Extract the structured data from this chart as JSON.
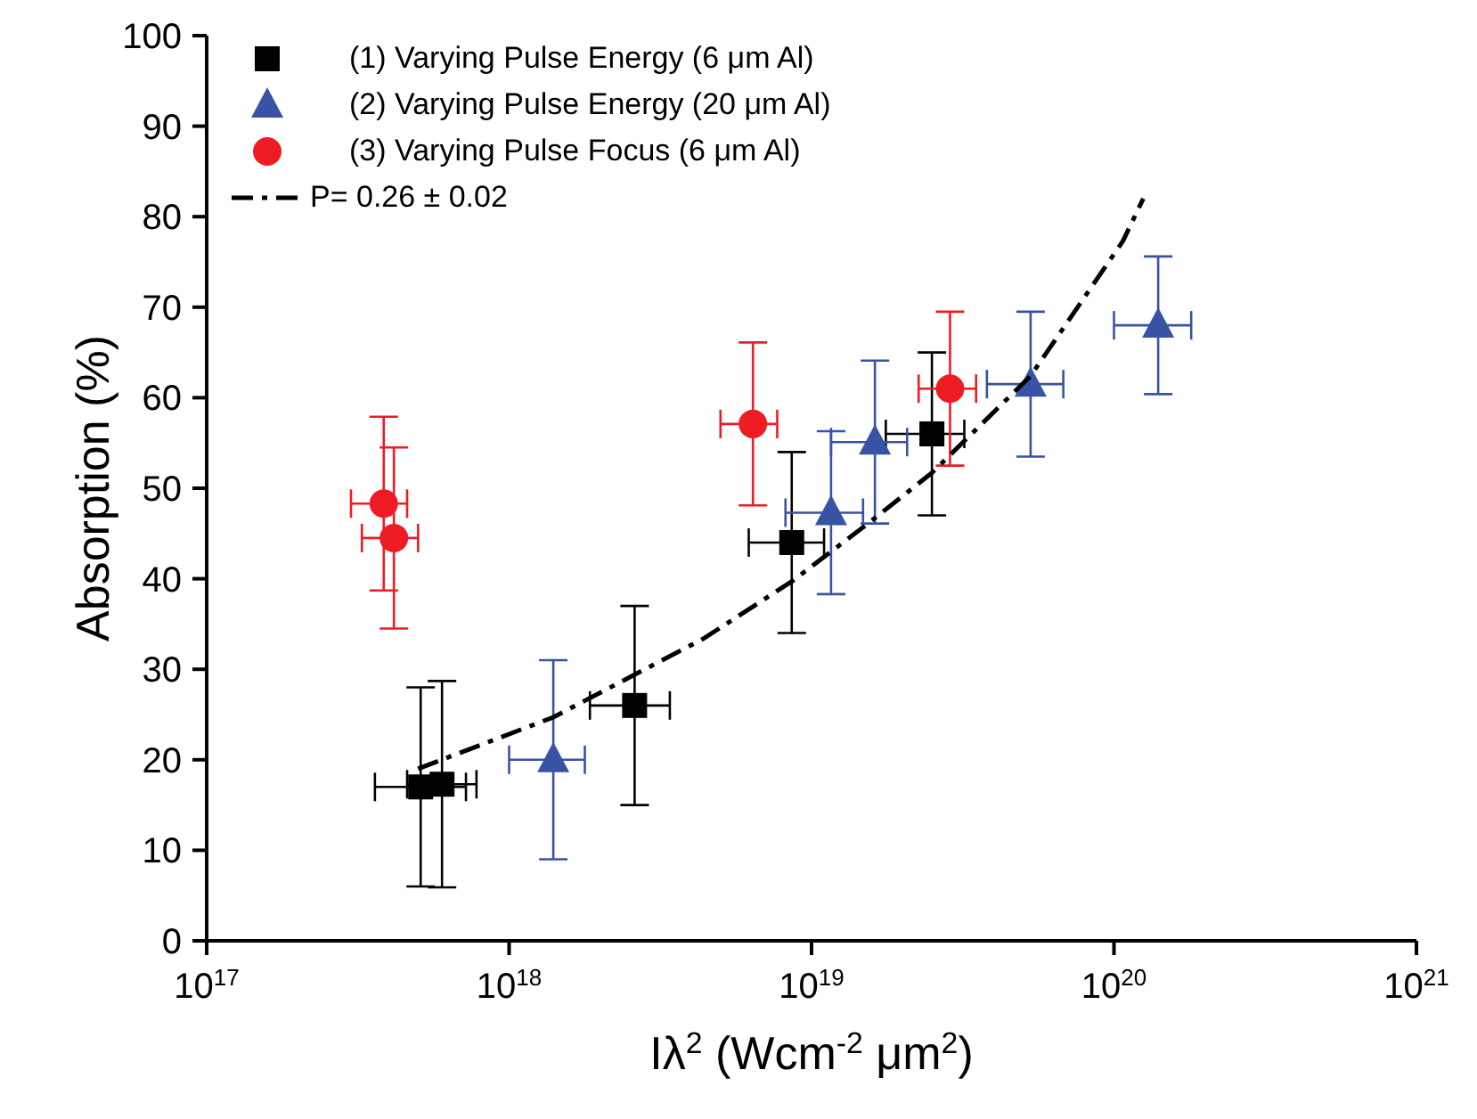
{
  "chart_data": {
    "type": "scatter",
    "xlabel": "Iλ$^{2}$ (Wcm$^{-2}$ μm$^{2}$)",
    "ylabel": "Absorption (%)",
    "log": "x",
    "xlim": [
      1e+17,
      1e+21
    ],
    "xticks": [
      {
        "value": 1e+17,
        "label": "10$^{17}$"
      },
      {
        "value": 1e+18,
        "label": "10$^{18}$"
      },
      {
        "value": 1e+19,
        "label": "10$^{19}$"
      },
      {
        "value": 1e+20,
        "label": "10$^{20}$"
      },
      {
        "value": 1e+21,
        "label": "10$^{21}$"
      }
    ],
    "ylim": [
      0,
      100
    ],
    "yticks": [
      0,
      10,
      20,
      30,
      40,
      50,
      60,
      70,
      80,
      90,
      100
    ],
    "grid": false,
    "legend": "top left",
    "series": [
      {
        "name": "(1) Varying Pulse Energy (6 μm Al)",
        "color": "#000000",
        "marker": "square",
        "x": [
          5.1e+17,
          6e+17,
          2.6e+18,
          8.6e+18,
          2.5e+19
        ],
        "values": [
          17,
          17.3,
          26,
          44,
          56
        ],
        "errors": [
          11,
          11.4,
          11,
          10,
          9
        ],
        "xerrors": [
          [
            3.6e+17,
            7.2e+17
          ],
          [
            4.6e+17,
            7.8e+17
          ],
          [
            1.85e+18,
            3.4e+18
          ],
          [
            6.2e+18,
            1.1e+19
          ],
          [
            1.76e+19,
            3.2e+19
          ]
        ]
      },
      {
        "name": "(2) Varying Pulse Energy (20 μm Al)",
        "color": "#3953a4",
        "marker": "triangle",
        "x": [
          1.4e+18,
          1.16e+19,
          1.62e+19,
          5.3e+19,
          1.4e+20
        ],
        "values": [
          20,
          47.3,
          55.1,
          61.5,
          68
        ],
        "errors": [
          11,
          9,
          9,
          8,
          7.6
        ],
        "xerrors": [
          [
            1e+18,
            1.78e+18
          ],
          [
            8.2e+18,
            1.48e+19
          ],
          [
            1.16e+19,
            2.07e+19
          ],
          [
            3.8e+19,
            6.8e+19
          ],
          [
            1e+20,
            1.8e+20
          ]
        ]
      },
      {
        "name": "(3) Varying Pulse Focus (6 μm Al)",
        "color": "#ed1c24",
        "marker": "circle",
        "x": [
          3.85e+17,
          4.16e+17,
          6.4e+18,
          2.87e+19
        ],
        "values": [
          48.3,
          44.5,
          57.1,
          61
        ],
        "errors": [
          9.6,
          10,
          9,
          8.5
        ],
        "xerrors": [
          [
            3e+17,
            4.6e+17
          ],
          [
            3.26e+17,
            5e+17
          ],
          [
            5e+18,
            7.7e+18
          ],
          [
            2.26e+19,
            3.5e+19
          ]
        ]
      },
      {
        "name": "P= 0.26 ± 0.02",
        "type": "line",
        "color": "#000000",
        "marker": "none",
        "line_style": "dashed",
        "x": [
          5e+17,
          1.4e+18,
          4.4e+18,
          8.6e+18,
          1.55e+19,
          2.5e+19,
          5.3e+19,
          1.07e+20,
          1.25e+20
        ],
        "values": [
          19,
          24.7,
          33.4,
          39.7,
          46.2,
          51.7,
          62.4,
          77.3,
          82
        ]
      }
    ]
  }
}
